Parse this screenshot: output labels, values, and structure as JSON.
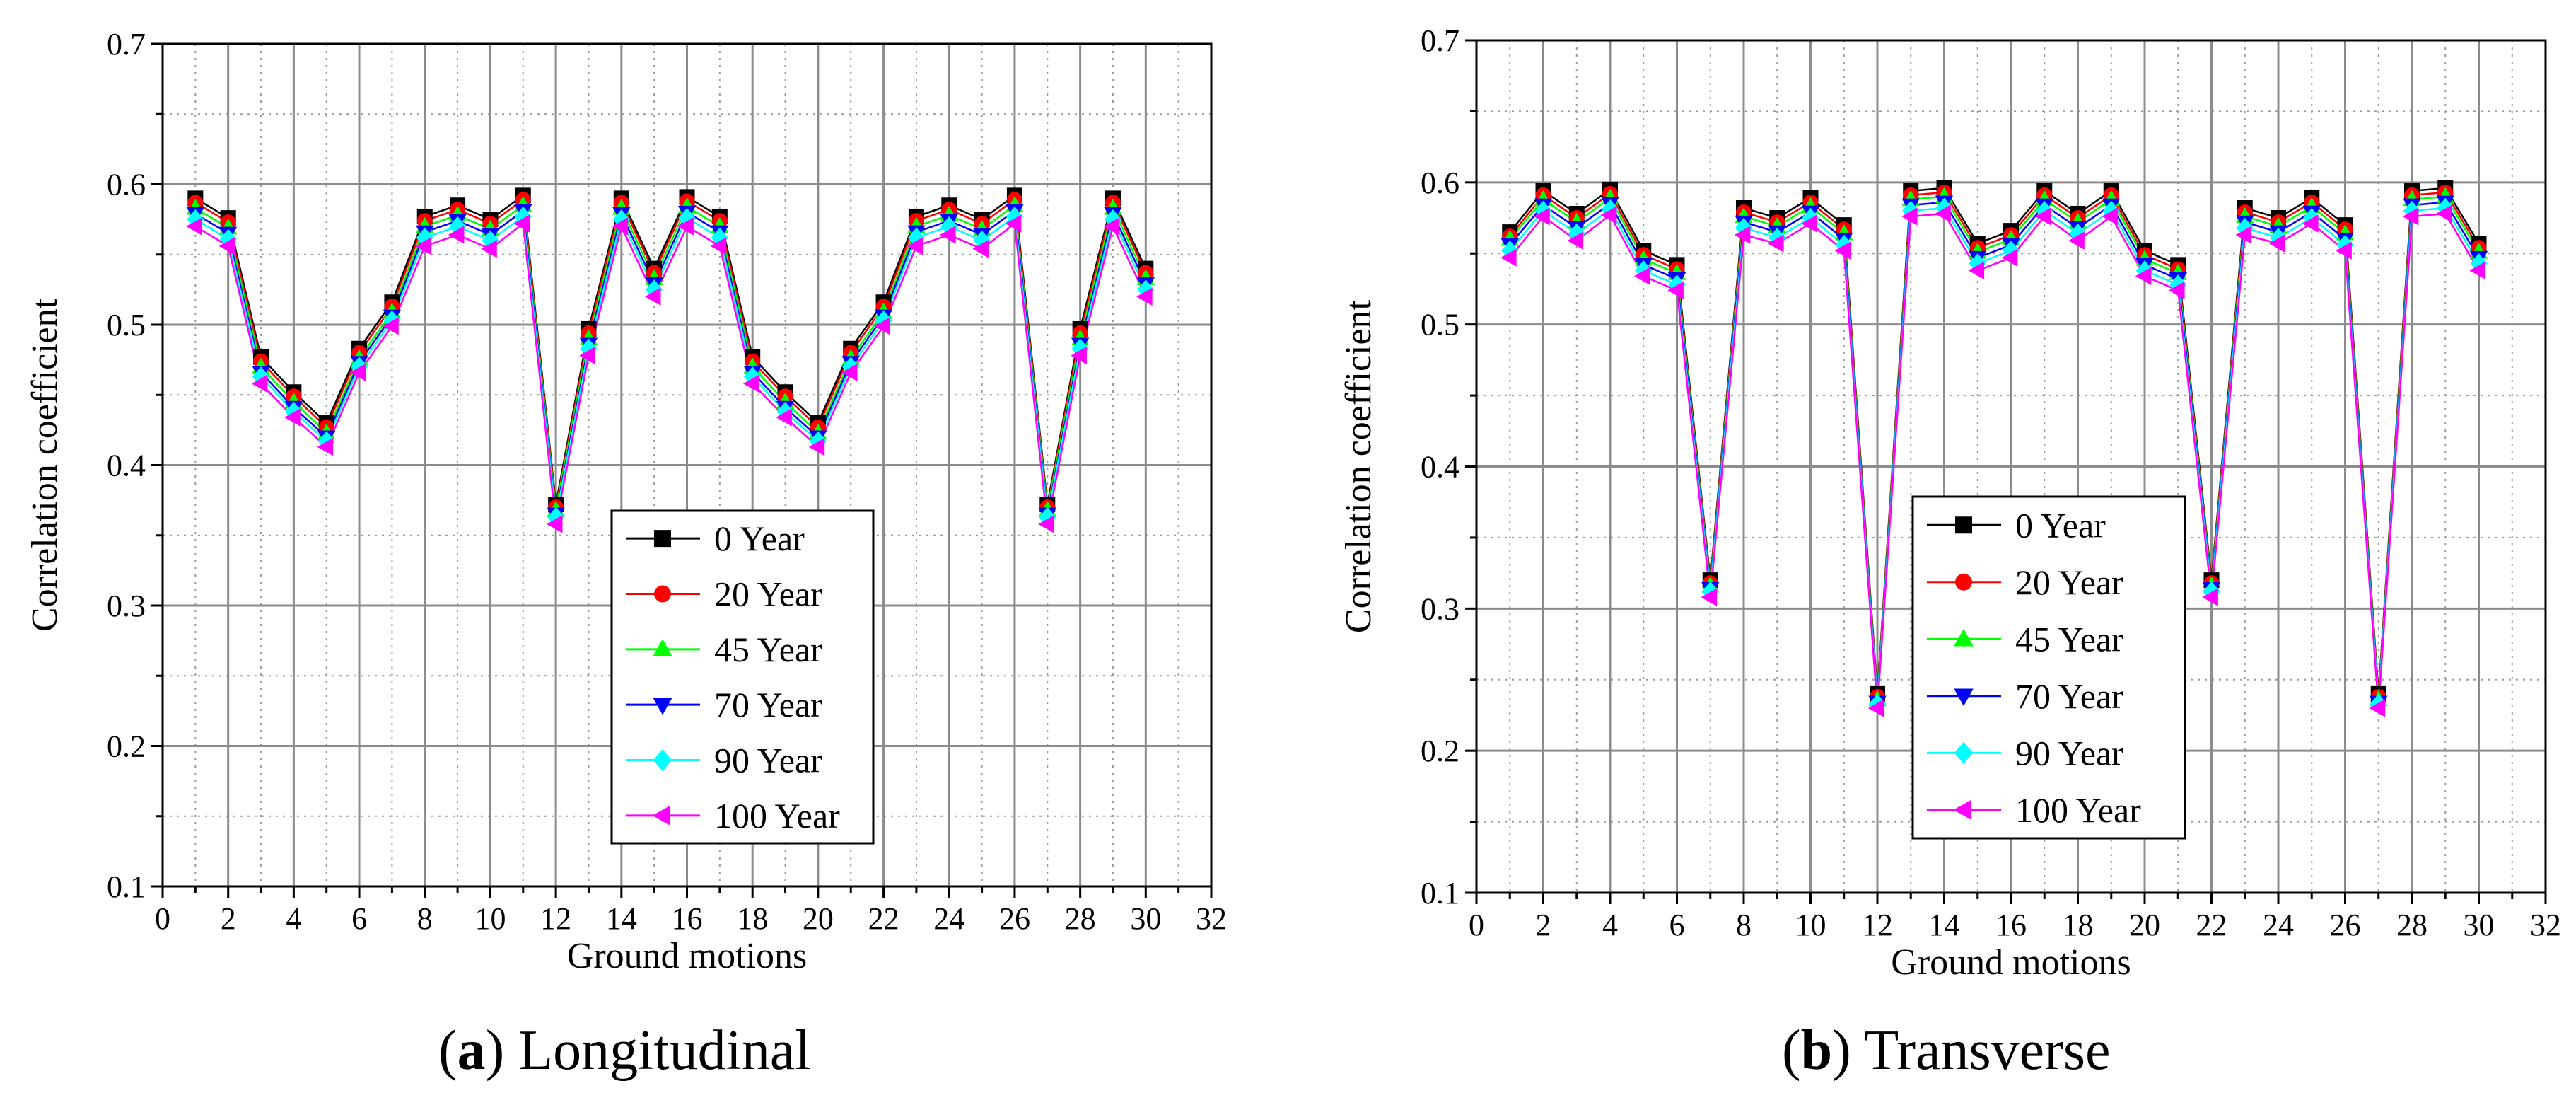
{
  "chart_data": [
    {
      "type": "line",
      "panel_label": "a",
      "caption": "Longitudinal",
      "title": "",
      "xlabel": "Ground motions",
      "ylabel": "Correlation coefficient",
      "xlim": [
        0,
        32
      ],
      "ylim": [
        0.1,
        0.7
      ],
      "x_ticks": [
        0,
        2,
        4,
        6,
        8,
        10,
        12,
        14,
        16,
        18,
        20,
        22,
        24,
        26,
        28,
        30,
        32
      ],
      "y_ticks": [
        0.1,
        0.2,
        0.3,
        0.4,
        0.5,
        0.6,
        0.7
      ],
      "legend_position": "center",
      "x": [
        1,
        2,
        3,
        4,
        5,
        6,
        7,
        8,
        9,
        10,
        11,
        12,
        13,
        14,
        15,
        16,
        17,
        18,
        19,
        20,
        21,
        22,
        23,
        24,
        25,
        26,
        27,
        28,
        29,
        30
      ],
      "series": [
        {
          "name": "0 Year",
          "color": "#000000",
          "marker": "square",
          "values": [
            0.59,
            0.576,
            0.477,
            0.452,
            0.43,
            0.483,
            0.516,
            0.577,
            0.585,
            0.575,
            0.592,
            0.372,
            0.497,
            0.59,
            0.54,
            0.591,
            0.577,
            0.477,
            0.452,
            0.43,
            0.483,
            0.516,
            0.577,
            0.585,
            0.575,
            0.592,
            0.372,
            0.497,
            0.59,
            0.54
          ]
        },
        {
          "name": "20 Year",
          "color": "#ff0000",
          "marker": "circle",
          "values": [
            0.587,
            0.573,
            0.474,
            0.449,
            0.427,
            0.48,
            0.513,
            0.574,
            0.582,
            0.572,
            0.589,
            0.37,
            0.494,
            0.587,
            0.537,
            0.588,
            0.574,
            0.474,
            0.449,
            0.427,
            0.48,
            0.513,
            0.574,
            0.582,
            0.572,
            0.589,
            0.37,
            0.494,
            0.587,
            0.537
          ]
        },
        {
          "name": "45 Year",
          "color": "#00ff00",
          "marker": "triangle-up",
          "values": [
            0.583,
            0.569,
            0.47,
            0.445,
            0.423,
            0.476,
            0.509,
            0.57,
            0.578,
            0.568,
            0.585,
            0.368,
            0.49,
            0.583,
            0.533,
            0.584,
            0.57,
            0.47,
            0.445,
            0.423,
            0.476,
            0.509,
            0.57,
            0.578,
            0.568,
            0.585,
            0.368,
            0.49,
            0.583,
            0.533
          ]
        },
        {
          "name": "70 Year",
          "color": "#0000ff",
          "marker": "triangle-down",
          "values": [
            0.579,
            0.565,
            0.466,
            0.441,
            0.42,
            0.473,
            0.506,
            0.566,
            0.574,
            0.564,
            0.581,
            0.365,
            0.486,
            0.579,
            0.529,
            0.58,
            0.566,
            0.466,
            0.441,
            0.42,
            0.473,
            0.506,
            0.566,
            0.574,
            0.564,
            0.581,
            0.365,
            0.486,
            0.579,
            0.529
          ]
        },
        {
          "name": "90 Year",
          "color": "#00ffff",
          "marker": "diamond",
          "values": [
            0.575,
            0.561,
            0.463,
            0.438,
            0.417,
            0.47,
            0.503,
            0.562,
            0.57,
            0.56,
            0.577,
            0.363,
            0.483,
            0.575,
            0.525,
            0.576,
            0.562,
            0.463,
            0.438,
            0.417,
            0.47,
            0.503,
            0.562,
            0.57,
            0.56,
            0.577,
            0.363,
            0.483,
            0.575,
            0.525
          ]
        },
        {
          "name": "100 Year",
          "color": "#ff00ff",
          "marker": "triangle-left",
          "values": [
            0.57,
            0.556,
            0.458,
            0.434,
            0.413,
            0.466,
            0.499,
            0.556,
            0.564,
            0.554,
            0.572,
            0.358,
            0.478,
            0.57,
            0.52,
            0.57,
            0.556,
            0.458,
            0.434,
            0.413,
            0.466,
            0.499,
            0.556,
            0.564,
            0.554,
            0.572,
            0.358,
            0.478,
            0.57,
            0.52
          ]
        }
      ]
    },
    {
      "type": "line",
      "panel_label": "b",
      "caption": "Transverse",
      "title": "",
      "xlabel": "Ground motions",
      "ylabel": "Correlation coefficient",
      "xlim": [
        0,
        32
      ],
      "ylim": [
        0.1,
        0.7
      ],
      "x_ticks": [
        0,
        2,
        4,
        6,
        8,
        10,
        12,
        14,
        16,
        18,
        20,
        22,
        24,
        26,
        28,
        30,
        32
      ],
      "y_ticks": [
        0.1,
        0.2,
        0.3,
        0.4,
        0.5,
        0.6,
        0.7
      ],
      "legend_position": "center",
      "x": [
        1,
        2,
        3,
        4,
        5,
        6,
        7,
        8,
        9,
        10,
        11,
        12,
        13,
        14,
        15,
        16,
        17,
        18,
        19,
        20,
        21,
        22,
        23,
        24,
        25,
        26,
        27,
        28,
        29,
        30
      ],
      "series": [
        {
          "name": "0 Year",
          "color": "#000000",
          "marker": "square",
          "values": [
            0.565,
            0.594,
            0.578,
            0.595,
            0.552,
            0.542,
            0.32,
            0.582,
            0.575,
            0.589,
            0.57,
            0.24,
            0.594,
            0.596,
            0.557,
            0.566,
            0.594,
            0.578,
            0.594,
            0.552,
            0.542,
            0.32,
            0.582,
            0.575,
            0.589,
            0.57,
            0.24,
            0.594,
            0.596,
            0.557
          ]
        },
        {
          "name": "20 Year",
          "color": "#ff0000",
          "marker": "circle",
          "values": [
            0.562,
            0.591,
            0.575,
            0.592,
            0.549,
            0.539,
            0.318,
            0.579,
            0.572,
            0.586,
            0.567,
            0.238,
            0.591,
            0.593,
            0.554,
            0.563,
            0.591,
            0.575,
            0.591,
            0.549,
            0.539,
            0.318,
            0.579,
            0.572,
            0.586,
            0.567,
            0.238,
            0.591,
            0.593,
            0.554
          ]
        },
        {
          "name": "45 Year",
          "color": "#00ff00",
          "marker": "triangle-up",
          "values": [
            0.56,
            0.588,
            0.572,
            0.589,
            0.546,
            0.536,
            0.316,
            0.576,
            0.569,
            0.583,
            0.564,
            0.236,
            0.588,
            0.59,
            0.551,
            0.56,
            0.588,
            0.572,
            0.588,
            0.546,
            0.536,
            0.316,
            0.576,
            0.569,
            0.583,
            0.564,
            0.236,
            0.588,
            0.59,
            0.551
          ]
        },
        {
          "name": "70 Year",
          "color": "#0000ff",
          "marker": "triangle-down",
          "values": [
            0.556,
            0.584,
            0.568,
            0.585,
            0.542,
            0.532,
            0.314,
            0.572,
            0.565,
            0.579,
            0.56,
            0.234,
            0.584,
            0.586,
            0.547,
            0.556,
            0.584,
            0.568,
            0.584,
            0.542,
            0.532,
            0.314,
            0.572,
            0.565,
            0.579,
            0.56,
            0.234,
            0.584,
            0.586,
            0.547
          ]
        },
        {
          "name": "90 Year",
          "color": "#00ffff",
          "marker": "diamond",
          "values": [
            0.552,
            0.58,
            0.564,
            0.581,
            0.538,
            0.528,
            0.312,
            0.568,
            0.561,
            0.575,
            0.556,
            0.233,
            0.58,
            0.582,
            0.543,
            0.552,
            0.58,
            0.564,
            0.58,
            0.538,
            0.528,
            0.312,
            0.568,
            0.561,
            0.575,
            0.556,
            0.233,
            0.58,
            0.582,
            0.543
          ]
        },
        {
          "name": "100 Year",
          "color": "#ff00ff",
          "marker": "triangle-left",
          "values": [
            0.547,
            0.576,
            0.559,
            0.577,
            0.534,
            0.524,
            0.308,
            0.563,
            0.557,
            0.571,
            0.552,
            0.23,
            0.576,
            0.578,
            0.538,
            0.547,
            0.576,
            0.559,
            0.576,
            0.534,
            0.524,
            0.308,
            0.563,
            0.557,
            0.571,
            0.552,
            0.23,
            0.576,
            0.578,
            0.538
          ]
        }
      ]
    }
  ]
}
